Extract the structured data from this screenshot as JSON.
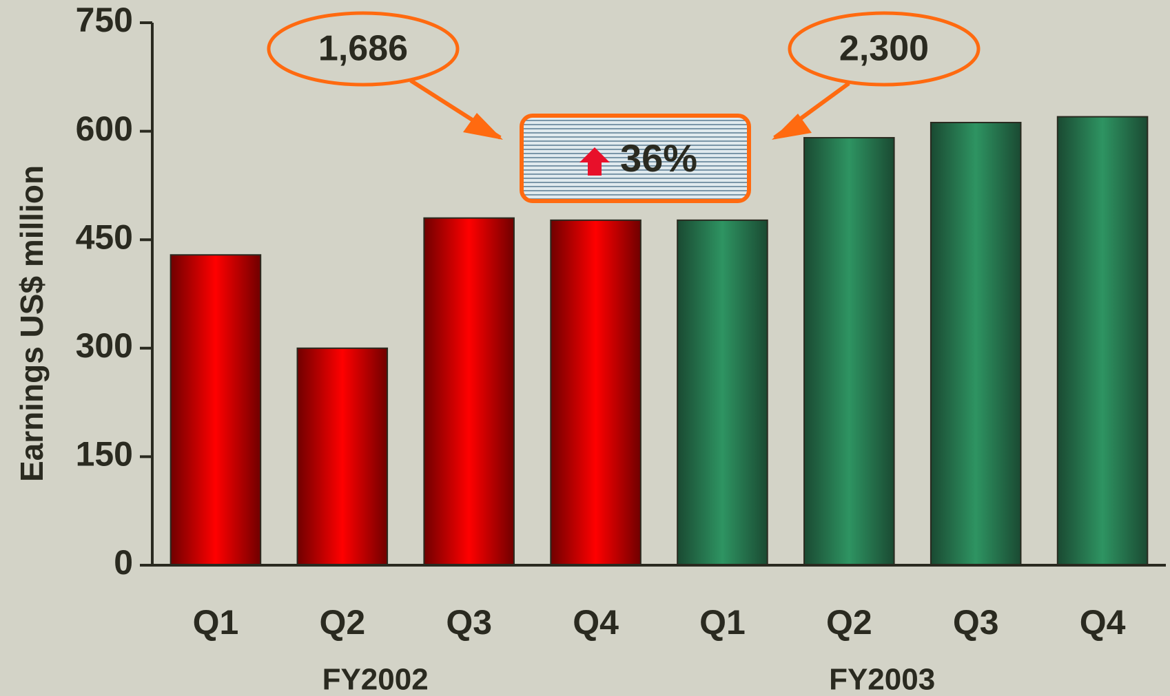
{
  "chart_data": {
    "type": "bar",
    "ylabel": "Earnings US$ million",
    "ylim": [
      0,
      750
    ],
    "yticks": [
      0,
      150,
      300,
      450,
      600,
      750
    ],
    "series": [
      {
        "name": "FY2002",
        "color": "#ff0000",
        "categories": [
          "Q1",
          "Q2",
          "Q3",
          "Q4"
        ],
        "values": [
          429,
          300,
          480,
          477
        ]
      },
      {
        "name": "FY2003",
        "color": "#2e9462",
        "categories": [
          "Q1",
          "Q2",
          "Q3",
          "Q4"
        ],
        "values": [
          477,
          591,
          612,
          620
        ]
      }
    ],
    "annotations": [
      "1,686",
      "2,300",
      "36%"
    ]
  }
}
